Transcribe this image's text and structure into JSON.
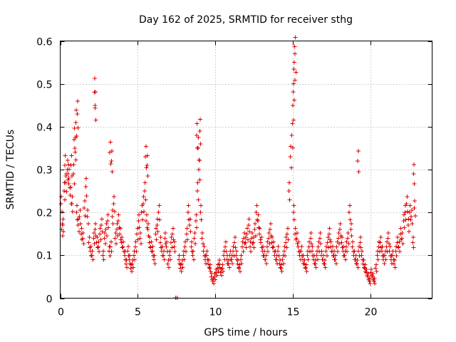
{
  "chart_data": {
    "type": "scatter",
    "title": "Day 162 of 2025, SRMTID for receiver sthg",
    "xlabel": "GPS time / hours",
    "ylabel": "SRMTID / TECUs",
    "xlim": [
      0,
      24
    ],
    "ylim": [
      0,
      0.6
    ],
    "xticks": [
      0,
      5,
      10,
      15,
      20
    ],
    "yticks": [
      0,
      0.1,
      0.2,
      0.3,
      0.4,
      0.5,
      0.6
    ],
    "grid": true,
    "marker": "+",
    "color": "#e00000",
    "zero_marks_x": [
      7.45,
      7.55
    ],
    "series": [
      {
        "name": "sthg",
        "x": [
          0.05,
          0.15,
          0.25,
          0.35,
          0.45,
          0.55,
          0.65,
          0.75,
          0.85,
          0.95,
          1.05,
          1.15,
          1.25,
          1.35,
          1.45,
          1.55,
          1.65,
          1.75,
          1.85,
          1.95,
          2.05,
          2.15,
          2.25,
          2.35,
          2.45,
          2.55,
          2.65,
          2.75,
          2.85,
          2.95,
          3.05,
          3.15,
          3.25,
          3.35,
          3.45,
          3.55,
          3.65,
          3.75,
          3.85,
          3.95,
          4.05,
          4.15,
          4.25,
          4.35,
          4.45,
          4.55,
          4.65,
          4.75,
          4.85,
          4.95,
          5.05,
          5.15,
          5.25,
          5.35,
          5.45,
          5.55,
          5.65,
          5.75,
          5.85,
          5.95,
          6.05,
          6.15,
          6.25,
          6.35,
          6.45,
          6.55,
          6.65,
          6.75,
          6.85,
          6.95,
          7.05,
          7.15,
          7.25,
          7.35,
          7.65,
          7.75,
          7.85,
          7.95,
          8.05,
          8.15,
          8.25,
          8.35,
          8.45,
          8.55,
          8.65,
          8.75,
          8.85,
          8.95,
          9.05,
          9.15,
          9.25,
          9.35,
          9.45,
          9.55,
          9.65,
          9.75,
          9.85,
          9.95,
          10.05,
          10.15,
          10.25,
          10.35,
          10.45,
          10.55,
          10.65,
          10.75,
          10.85,
          10.95,
          11.05,
          11.15,
          11.25,
          11.35,
          11.45,
          11.55,
          11.65,
          11.75,
          11.85,
          11.95,
          12.05,
          12.15,
          12.25,
          12.35,
          12.45,
          12.55,
          12.65,
          12.75,
          12.85,
          12.95,
          13.05,
          13.15,
          13.25,
          13.35,
          13.45,
          13.55,
          13.65,
          13.75,
          13.85,
          13.95,
          14.05,
          14.15,
          14.25,
          14.35,
          14.45,
          14.55,
          14.65,
          14.75,
          14.85,
          14.95,
          15.05,
          15.15,
          15.25,
          15.35,
          15.45,
          15.55,
          15.65,
          15.75,
          15.85,
          15.95,
          16.05,
          16.15,
          16.25,
          16.35,
          16.45,
          16.55,
          16.65,
          16.75,
          16.85,
          16.95,
          17.05,
          17.15,
          17.25,
          17.35,
          17.45,
          17.55,
          17.65,
          17.75,
          17.85,
          17.95,
          18.05,
          18.15,
          18.25,
          18.35,
          18.45,
          18.55,
          18.65,
          18.75,
          18.85,
          18.95,
          19.05,
          19.15,
          19.25,
          19.35,
          19.45,
          19.55,
          19.65,
          19.75,
          19.85,
          19.95,
          20.05,
          20.15,
          20.25,
          20.35,
          20.45,
          20.55,
          20.65,
          20.75,
          20.85,
          20.95,
          21.05,
          21.15,
          21.25,
          21.35,
          21.45,
          21.55,
          21.65,
          21.75,
          21.85,
          21.95,
          22.05,
          22.15,
          22.25,
          22.35,
          22.45,
          22.55,
          22.65,
          22.75,
          22.85,
          0.1,
          0.3,
          0.5,
          0.7,
          0.9,
          1.0,
          1.1,
          2.2,
          2.25,
          3.2,
          3.3,
          5.5,
          5.6,
          8.8,
          8.9,
          9.0,
          15.0,
          15.05,
          15.1,
          15.15,
          19.2,
          22.8
        ],
        "y": [
          0.22,
          0.17,
          0.25,
          0.27,
          0.3,
          0.28,
          0.24,
          0.22,
          0.29,
          0.35,
          0.2,
          0.17,
          0.19,
          0.15,
          0.14,
          0.21,
          0.26,
          0.19,
          0.13,
          0.11,
          0.1,
          0.14,
          0.16,
          0.13,
          0.12,
          0.15,
          0.17,
          0.1,
          0.14,
          0.16,
          0.18,
          0.11,
          0.12,
          0.19,
          0.22,
          0.14,
          0.16,
          0.18,
          0.15,
          0.13,
          0.12,
          0.1,
          0.08,
          0.11,
          0.09,
          0.07,
          0.08,
          0.1,
          0.12,
          0.15,
          0.18,
          0.14,
          0.2,
          0.22,
          0.25,
          0.18,
          0.16,
          0.13,
          0.12,
          0.11,
          0.09,
          0.15,
          0.17,
          0.2,
          0.13,
          0.11,
          0.1,
          0.14,
          0.12,
          0.08,
          0.1,
          0.13,
          0.15,
          0.12,
          0.09,
          0.07,
          0.08,
          0.1,
          0.12,
          0.15,
          0.2,
          0.17,
          0.12,
          0.1,
          0.14,
          0.18,
          0.25,
          0.3,
          0.2,
          0.14,
          0.11,
          0.09,
          0.1,
          0.08,
          0.07,
          0.05,
          0.04,
          0.05,
          0.06,
          0.07,
          0.08,
          0.06,
          0.07,
          0.1,
          0.12,
          0.09,
          0.08,
          0.1,
          0.09,
          0.11,
          0.13,
          0.1,
          0.08,
          0.07,
          0.09,
          0.12,
          0.14,
          0.13,
          0.15,
          0.17,
          0.12,
          0.14,
          0.13,
          0.16,
          0.2,
          0.18,
          0.15,
          0.13,
          0.11,
          0.1,
          0.09,
          0.12,
          0.14,
          0.16,
          0.13,
          0.12,
          0.1,
          0.09,
          0.11,
          0.08,
          0.07,
          0.09,
          0.11,
          0.13,
          0.15,
          0.25,
          0.33,
          0.38,
          0.2,
          0.15,
          0.14,
          0.12,
          0.1,
          0.11,
          0.09,
          0.08,
          0.07,
          0.1,
          0.12,
          0.14,
          0.11,
          0.09,
          0.08,
          0.1,
          0.12,
          0.14,
          0.1,
          0.09,
          0.08,
          0.11,
          0.13,
          0.15,
          0.12,
          0.11,
          0.1,
          0.09,
          0.12,
          0.14,
          0.16,
          0.13,
          0.11,
          0.1,
          0.12,
          0.14,
          0.2,
          0.16,
          0.12,
          0.1,
          0.09,
          0.08,
          0.11,
          0.13,
          0.1,
          0.08,
          0.07,
          0.06,
          0.05,
          0.04,
          0.06,
          0.05,
          0.04,
          0.07,
          0.1,
          0.12,
          0.13,
          0.11,
          0.09,
          0.1,
          0.12,
          0.14,
          0.11,
          0.09,
          0.1,
          0.08,
          0.11,
          0.13,
          0.12,
          0.15,
          0.14,
          0.18,
          0.2,
          0.22,
          0.17,
          0.2,
          0.19,
          0.13,
          0.21,
          0.16,
          0.31,
          0.29,
          0.31,
          0.37,
          0.41,
          0.43,
          0.48,
          0.45,
          0.34,
          0.32,
          0.33,
          0.31,
          0.38,
          0.35,
          0.39,
          0.45,
          0.5,
          0.55,
          0.57,
          0.32,
          0.29
        ]
      }
    ]
  }
}
